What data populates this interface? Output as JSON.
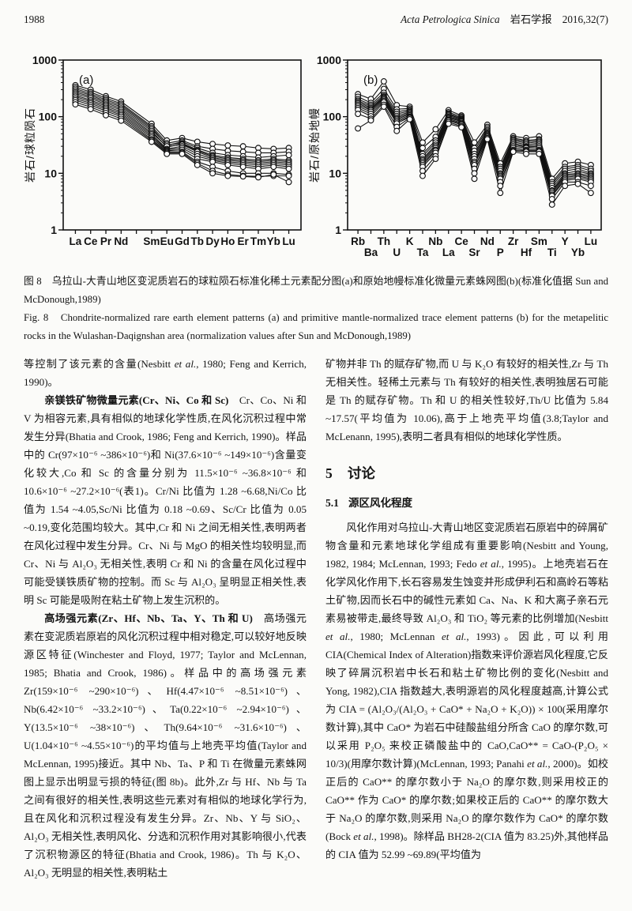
{
  "colors": {
    "ink": "#111111",
    "paper": "#fbfbf9"
  },
  "header": {
    "page_number": "1988",
    "journal": [
      {
        "t": "Acta Petrologica Sinica",
        "s": "i"
      },
      {
        "t": "　岩石学报　2016,32(7)"
      }
    ]
  },
  "figure": {
    "caption_cn": "图 8　乌拉山-大青山地区变泥质岩石的球粒陨石标准化稀土元素配分图(a)和原始地幔标准化微量元素蛛网图(b)(标准化值据 Sun and McDonough,1989)",
    "caption_en": "Fig. 8　Chondrite-normalized rare earth element patterns (a) and primitive mantle-normalized trace element patterns (b) for the metapelitic rocks in the Wulashan-Daqignshan area (normalization values after Sun and McDonough,1989)"
  },
  "chart_data": [
    {
      "type": "line",
      "title": "(a)",
      "ylabel": "岩石/球粒陨石",
      "xlabel": "",
      "yscale": "log",
      "ylim": [
        1,
        1000
      ],
      "x_label_rows": 1,
      "slot_count": 15,
      "slot_positions": [
        0,
        1,
        2,
        3,
        5,
        6,
        7,
        8,
        9,
        10,
        11,
        12,
        13,
        14
      ],
      "categories": [
        "La",
        "Ce",
        "Pr",
        "Nd",
        "Sm",
        "Eu",
        "Gd",
        "Tb",
        "Dy",
        "Ho",
        "Er",
        "Tm",
        "Yb",
        "Lu"
      ],
      "series": [
        {
          "name": "s1",
          "values": [
            360,
            300,
            230,
            185,
            75,
            38,
            42,
            36,
            33,
            31,
            30,
            28,
            27,
            28
          ]
        },
        {
          "name": "s2",
          "values": [
            335,
            272,
            212,
            170,
            68,
            34,
            38,
            30,
            27,
            25,
            24,
            23,
            23,
            24
          ]
        },
        {
          "name": "s3",
          "values": [
            312,
            255,
            198,
            160,
            64,
            31,
            36,
            28,
            23,
            21,
            20,
            19,
            20,
            21
          ]
        },
        {
          "name": "s4",
          "values": [
            292,
            240,
            186,
            150,
            60,
            32,
            34,
            26,
            21,
            19,
            18,
            17,
            18,
            17
          ]
        },
        {
          "name": "s5",
          "values": [
            272,
            226,
            175,
            140,
            56,
            29,
            33,
            25,
            20,
            18,
            17,
            16,
            17,
            16
          ]
        },
        {
          "name": "s6",
          "values": [
            256,
            212,
            164,
            131,
            52,
            30,
            32,
            24,
            19,
            17,
            16,
            15,
            16,
            15
          ]
        },
        {
          "name": "s7",
          "values": [
            240,
            196,
            154,
            122,
            49,
            27,
            30,
            22,
            18,
            16,
            15,
            14,
            15,
            14
          ]
        },
        {
          "name": "s8",
          "values": [
            226,
            184,
            144,
            114,
            46,
            26,
            28,
            20,
            17,
            15,
            14,
            13,
            14,
            13
          ]
        },
        {
          "name": "s9",
          "values": [
            210,
            172,
            135,
            107,
            43,
            25,
            26,
            18,
            16,
            14,
            13,
            12,
            13,
            12
          ]
        },
        {
          "name": "s10",
          "values": [
            196,
            160,
            126,
            100,
            40,
            24,
            24,
            16,
            13,
            11,
            10,
            10,
            10,
            9.5
          ]
        },
        {
          "name": "s11",
          "values": [
            180,
            148,
            116,
            92,
            38,
            23,
            23,
            15,
            11,
            9.5,
            9,
            8.8,
            9,
            9
          ]
        },
        {
          "name": "s12",
          "values": [
            165,
            136,
            106,
            85,
            36,
            22,
            22,
            14,
            10,
            9,
            8.8,
            8.5,
            9.5,
            7
          ]
        }
      ]
    },
    {
      "type": "line",
      "title": "(b)",
      "ylabel": "岩石/原始地幔",
      "xlabel": "",
      "yscale": "log",
      "ylim": [
        1,
        1000
      ],
      "x_label_rows": 2,
      "categories": [
        "Rb",
        "Ba",
        "Th",
        "U",
        "K",
        "Ta",
        "Nb",
        "La",
        "Ce",
        "Sr",
        "Nd",
        "P",
        "Zr",
        "Hf",
        "Sm",
        "Ti",
        "Y",
        "Yb",
        "Lu"
      ],
      "series": [
        {
          "name": "s1",
          "values": [
            250,
            205,
            420,
            160,
            150,
            35,
            60,
            130,
            105,
            35,
            72,
            15,
            45,
            42,
            45,
            8,
            15,
            16,
            14
          ]
        },
        {
          "name": "s2",
          "values": [
            225,
            175,
            310,
            135,
            140,
            28,
            44,
            120,
            100,
            28,
            66,
            13,
            42,
            38,
            40,
            7,
            13,
            14,
            12
          ]
        },
        {
          "name": "s3",
          "values": [
            205,
            162,
            265,
            122,
            132,
            22,
            38,
            114,
            95,
            25,
            62,
            12,
            40,
            36,
            38,
            6.5,
            12,
            13,
            11
          ]
        },
        {
          "name": "s4",
          "values": [
            192,
            152,
            242,
            112,
            126,
            20,
            35,
            110,
            91,
            22,
            58,
            11,
            38,
            34,
            36,
            6,
            11,
            12,
            10
          ]
        },
        {
          "name": "s5",
          "values": [
            182,
            143,
            228,
            103,
            121,
            18,
            32,
            105,
            88,
            20,
            55,
            10,
            36,
            32,
            34,
            5.5,
            10,
            11,
            9.5
          ]
        },
        {
          "name": "s6",
          "values": [
            172,
            136,
            219,
            96,
            116,
            17,
            30,
            100,
            85,
            18,
            52,
            9.5,
            34,
            30,
            32,
            5,
            9.5,
            10,
            9
          ]
        },
        {
          "name": "s7",
          "values": [
            162,
            130,
            210,
            91,
            111,
            16,
            28,
            96,
            82,
            16,
            50,
            9,
            32,
            29,
            30,
            4.8,
            9,
            9.5,
            8.5
          ]
        },
        {
          "name": "s8",
          "values": [
            152,
            122,
            200,
            86,
            106,
            15,
            26,
            92,
            78,
            15,
            48,
            8.5,
            30,
            28,
            28,
            4.5,
            8.5,
            9,
            8
          ]
        },
        {
          "name": "s9",
          "values": [
            142,
            112,
            190,
            81,
            101,
            14,
            25,
            88,
            75,
            14,
            46,
            8,
            28,
            26,
            26,
            4.2,
            8,
            8.5,
            7.5
          ]
        },
        {
          "name": "s10",
          "values": [
            132,
            102,
            180,
            76,
            98,
            13,
            23,
            85,
            72,
            12,
            44,
            7,
            26,
            25,
            25,
            4,
            7.5,
            8,
            7
          ]
        },
        {
          "name": "s11",
          "values": [
            112,
            92,
            162,
            66,
            95,
            11,
            20,
            80,
            68,
            10,
            42,
            6,
            25,
            24,
            24,
            3.5,
            7,
            7,
            6
          ]
        },
        {
          "name": "s12",
          "values": [
            62,
            86,
            150,
            56,
            90,
            9,
            18,
            75,
            65,
            8,
            40,
            4.5,
            24,
            22,
            22,
            2.8,
            6,
            6.5,
            4.5
          ]
        }
      ]
    }
  ],
  "body": {
    "left": [
      {
        "indent": false,
        "runs": [
          {
            "t": "等控制了该元素的含量(Nesbitt "
          },
          {
            "t": "et al.",
            "s": "i"
          },
          {
            "t": ", 1980; Feng and Kerrich, 1990)。"
          }
        ]
      },
      {
        "indent": true,
        "runs": [
          {
            "t": "亲镁铁矿物微量元素(Cr、Ni、Co 和 Sc)",
            "s": "b"
          },
          {
            "t": "　Cr、Co、Ni 和 V 为相容元素,具有相似的地球化学性质,在风化沉积过程中常发生分异(Bhatia and Crook, 1986; Feng and Kerrich, 1990)。样品中的 Cr(97×10⁻⁶ ~386×10⁻⁶)和 Ni(37.6×10⁻⁶ ~149×10⁻⁶)含量变化较大,Co 和 Sc 的含量分别为 11.5×10⁻⁶ ~36.8×10⁻⁶ 和 10.6×10⁻⁶ ~27.2×10⁻⁶(表1)。Cr/Ni 比值为 1.28 ~6.68,Ni/Co 比值为 1.54 ~4.05,Sc/Ni 比值为 0.18 ~0.69、Sc/Cr 比值为 0.05 ~0.19,变化范围均较大。其中,Cr 和 Ni 之间无相关性,表明两者在风化过程中发生分异。Cr、Ni 与 MgO 的相关性均较明显,而 Cr、Ni 与 Al₂O₃ 无相关性,表明 Cr 和 Ni 的含量在风化过程中可能受镁铁质矿物的控制。而 Sc 与 Al₂O₃ 呈明显正相关性,表明 Sc 可能是吸附在粘土矿物上发生沉积的。"
          }
        ]
      },
      {
        "indent": true,
        "runs": [
          {
            "t": "高场强元素(Zr、Hf、Nb、Ta、Y、Th 和 U)",
            "s": "b"
          },
          {
            "t": "　高场强元素在变泥质岩原岩的风化沉积过程中相对稳定,可以较好地反映源区特征(Winchester and Floyd, 1977; Taylor and McLennan, 1985; Bhatia and Crook, 1986)。样品中的高场强元素 Zr(159×10⁻⁶ ~290×10⁻⁶)、Hf(4.47×10⁻⁶ ~8.51×10⁻⁶)、Nb(6.42×10⁻⁶ ~33.2×10⁻⁶)、Ta(0.22×10⁻⁶ ~2.94×10⁻⁶)、Y(13.5×10⁻⁶ ~38×10⁻⁶)、Th(9.64×10⁻⁶ ~31.6×10⁻⁶)、U(1.04×10⁻⁶ ~4.55×10⁻⁶)的平均值与上地壳平均值(Taylor and McLennan, 1995)接近。其中 Nb、Ta、P 和 Ti 在微量元素蛛网图上显示出明显亏损的特征(图 8b)。此外,Zr 与 Hf、Nb 与 Ta 之间有很好的相关性,表明这些元素对有相似的地球化学行为,且在风化和沉积过程没有发生分异。Zr、Nb、Y 与 SiO₂、Al₂O₃ 无相关性,表明风化、分选和沉积作用对其影响很小,代表了沉积物源区的特征(Bhatia and Crook, 1986)。Th 与 K₂O、Al₂O₃ 无明显的相关性,表明粘土"
          }
        ]
      }
    ],
    "right_pre": [
      {
        "indent": false,
        "runs": [
          {
            "t": "矿物并非 Th 的赋存矿物,而 U 与 K₂O 有较好的相关性,Zr 与 Th 无相关性。轻稀土元素与 Th 有较好的相关性,表明独居石可能是 Th 的赋存矿物。Th 和 U 的相关性较好,Th/U 比值为 5.84 ~17.57(平均值为 10.06),高于上地壳平均值(3.8;Taylor and McLenann, 1995),表明二者具有相似的地球化学性质。"
          }
        ]
      }
    ],
    "section": {
      "number": "5",
      "title": "讨论"
    },
    "subsection": {
      "number": "5.1",
      "title": "源区风化程度"
    },
    "right_post": [
      {
        "indent": true,
        "runs": [
          {
            "t": "风化作用对乌拉山-大青山地区变泥质岩石原岩中的碎屑矿物含量和元素地球化学组成有重要影响(Nesbitt and Young, 1982, 1984; McLennan, 1993; Fedo "
          },
          {
            "t": "et al.",
            "s": "i"
          },
          {
            "t": ", 1995)。上地壳岩石在化学风化作用下,长石容易发生蚀变并形成伊利石和高岭石等粘土矿物,因而长石中的碱性元素如 Ca、Na、K 和大离子亲石元素易被带走,最终导致 Al₂O₃ 和 TiO₂ 等元素的比例增加(Nesbitt "
          },
          {
            "t": "et al.",
            "s": "i"
          },
          {
            "t": ", 1980; McLennan "
          },
          {
            "t": "et al.",
            "s": "i"
          },
          {
            "t": ", 1993)。因此,可以利用 CIA(Chemical Index of Alteration)指数来评价源岩风化程度,它反映了碎屑沉积岩中长石和粘土矿物比例的变化(Nesbitt and Yong, 1982),CIA 指数越大,表明源岩的风化程度越高,计算公式为 CIA = (Al₂O₃/(Al₂O₃ + CaO* + Na₂O + K₂O)) × 100(采用摩尔数计算),其中 CaO* 为岩石中硅酸盐组分所含 CaO 的摩尔数,可以采用 P₂O₅ 来校正磷酸盐中的 CaO,CaO** = CaO-(P₂O₅ × 10/3)(用摩尔数计算)(McLennan, 1993; Panahi "
          },
          {
            "t": "et al.",
            "s": "i"
          },
          {
            "t": ", 2000)。如校正后的 CaO** 的摩尔数小于 Na₂O 的摩尔数,则采用校正的 CaO** 作为 CaO* 的摩尔数;如果校正后的 CaO** 的摩尔数大于 Na₂O 的摩尔数,则采用 Na₂O 的摩尔数作为 CaO* 的摩尔数(Bock "
          },
          {
            "t": "et al.",
            "s": "i"
          },
          {
            "t": ", 1998)。除样品 BH28-2(CIA 值为 83.25)外,其他样品的 CIA 值为 52.99 ~69.89(平均值为"
          }
        ]
      }
    ]
  }
}
